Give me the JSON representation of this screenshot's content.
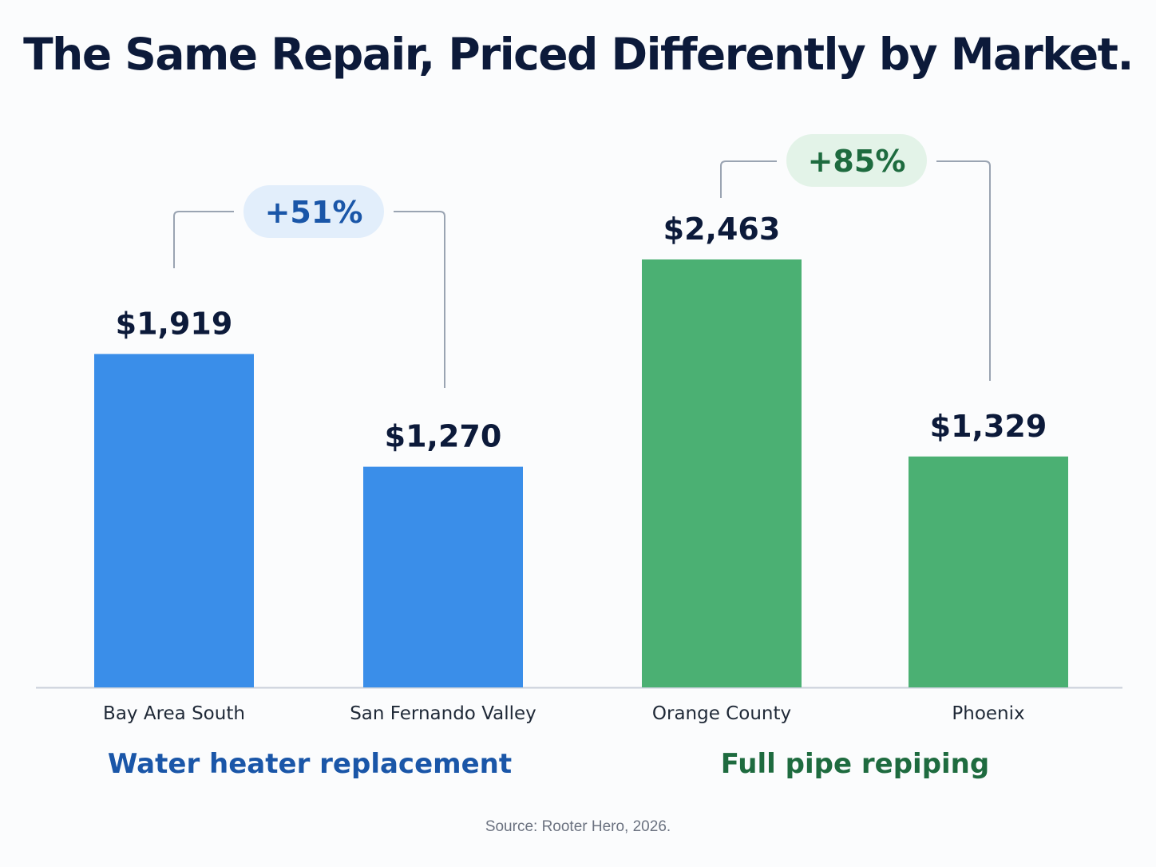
{
  "title": "The Same Repair, Priced Differently by Market.",
  "source": "Source: Rooter Hero, 2026.",
  "colors": {
    "blue_bar": "#3a8ee9",
    "green_bar": "#4bb073",
    "blue_text": "#1a56a8",
    "green_text": "#1e6b3f",
    "blue_pill": "#e2eefb",
    "green_pill": "#e3f3e8",
    "dark_text": "#0c1a3a",
    "bracket": "#9aa4b2",
    "baseline": "#c9d0da"
  },
  "chart_data": {
    "type": "bar",
    "categories": [
      "Bay Area South",
      "San Fernando Valley",
      "Orange County",
      "Phoenix"
    ],
    "values": [
      1919,
      1270,
      2463,
      1329
    ],
    "value_labels": [
      "$1,919",
      "$1,270",
      "$2,463",
      "$1,329"
    ],
    "groups": [
      {
        "name": "Water heater replacement",
        "categories": [
          "Bay Area South",
          "San Fernando Valley"
        ],
        "values": [
          1919,
          1270
        ],
        "color": "#3a8ee9",
        "difference_label": "+51%"
      },
      {
        "name": "Full pipe repiping",
        "categories": [
          "Orange County",
          "Phoenix"
        ],
        "values": [
          2463,
          1329
        ],
        "color": "#4bb073",
        "difference_label": "+85%"
      }
    ],
    "ylim": [
      0,
      2463
    ],
    "grid": false,
    "legend": "none"
  }
}
